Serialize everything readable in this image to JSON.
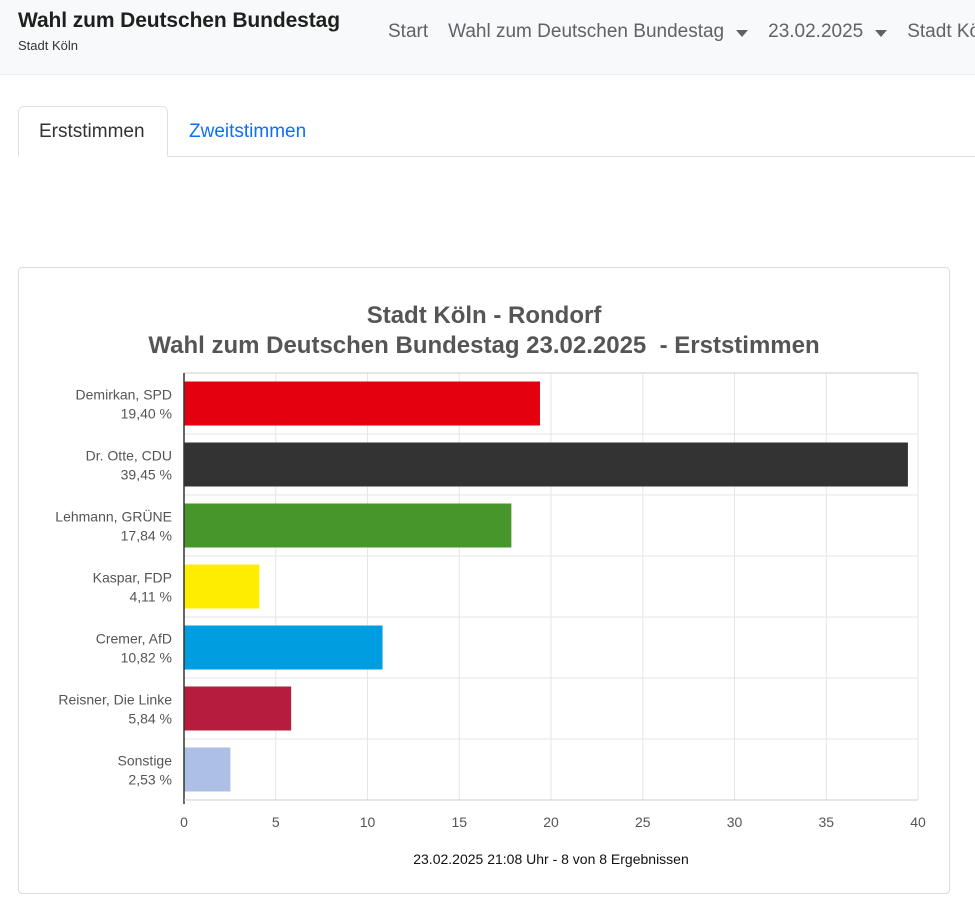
{
  "navbar": {
    "brand_title": "Wahl zum Deutschen Bundestag",
    "brand_subtitle": "Stadt Köln",
    "items": [
      {
        "label": "Start",
        "dropdown": false
      },
      {
        "label": "Wahl zum Deutschen Bundestag",
        "dropdown": true
      },
      {
        "label": "23.02.2025",
        "dropdown": true
      },
      {
        "label": "Stadt Köln",
        "dropdown": false
      }
    ]
  },
  "tabs": [
    {
      "label": "Erststimmen",
      "active": true
    },
    {
      "label": "Zweitstimmen",
      "active": false
    }
  ],
  "colors": {
    "tab_link": "#0d6efd",
    "grid": "#e6e6e6",
    "axis": "#333333"
  },
  "chart_data": {
    "type": "bar",
    "orientation": "horizontal",
    "title_line1": "Stadt Köln - Rondorf",
    "title_line2": "Wahl zum Deutschen Bundestag 23.02.2025  - Erststimmen",
    "categories": [
      {
        "name": "Demirkan, SPD",
        "percent_label": "19,40 %"
      },
      {
        "name": "Dr. Otte, CDU",
        "percent_label": "39,45 %"
      },
      {
        "name": "Lehmann, GRÜNE",
        "percent_label": "17,84 %"
      },
      {
        "name": "Kaspar, FDP",
        "percent_label": "4,11 %"
      },
      {
        "name": "Cremer, AfD",
        "percent_label": "10,82 %"
      },
      {
        "name": "Reisner, Die Linke",
        "percent_label": "5,84 %"
      },
      {
        "name": "Sonstige",
        "percent_label": "2,53 %"
      }
    ],
    "values": [
      19.4,
      39.45,
      17.84,
      4.11,
      10.82,
      5.84,
      2.53
    ],
    "bar_colors": [
      "#e3000f",
      "#333333",
      "#46962b",
      "#ffed00",
      "#009ee0",
      "#b61c3e",
      "#aebfe5"
    ],
    "xlim": [
      0,
      40
    ],
    "xticks": [
      "0",
      "5",
      "10",
      "15",
      "20",
      "25",
      "30",
      "35",
      "40"
    ],
    "grid": true,
    "footer": "23.02.2025 21:08 Uhr - 8 von 8 Ergebnissen"
  }
}
